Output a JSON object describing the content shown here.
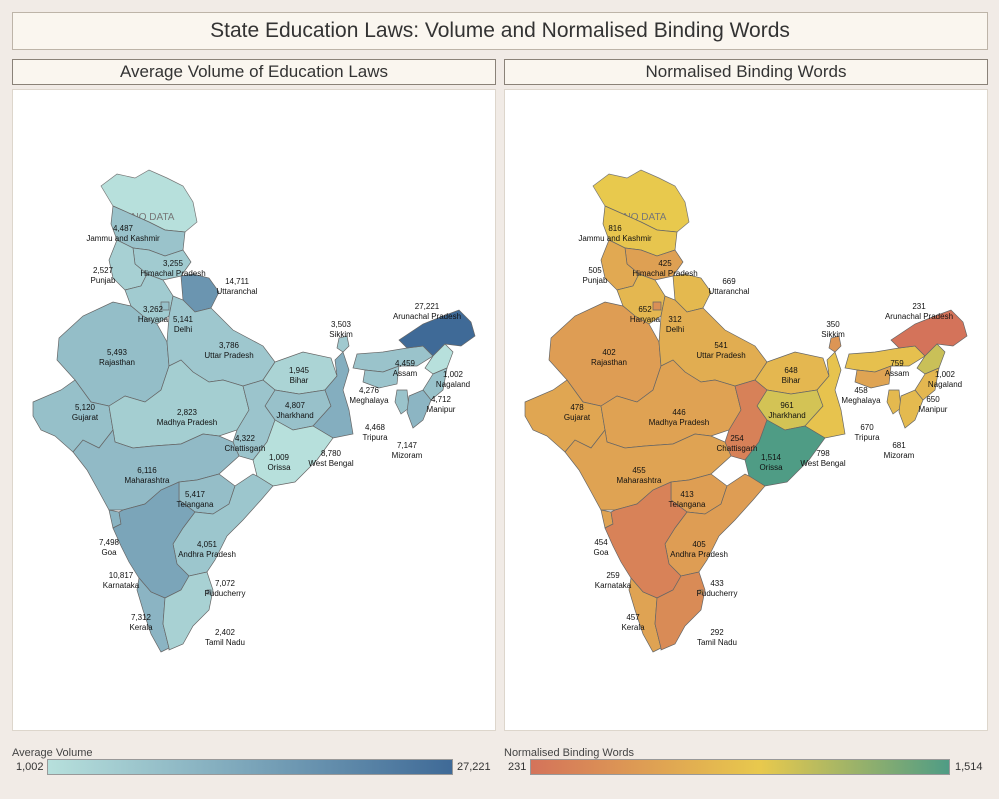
{
  "title": "State Education Laws: Volume and Normalised Binding Words",
  "no_data_label": "NO DATA",
  "left_panel": {
    "title": "Average Volume of Education Laws",
    "legend": {
      "title": "Average Volume",
      "min": "1,002",
      "max": "27,221"
    },
    "colors": {
      "low": "#b7e0dc",
      "high": "#3f6a97"
    }
  },
  "right_panel": {
    "title": "Normalised Binding Words",
    "legend": {
      "title": "Normalised Binding Words",
      "min": "231",
      "max": "1,514"
    },
    "colors": {
      "low": "#d4735a",
      "mid": "#e8c94d",
      "high": "#4f9c85"
    }
  },
  "volume_labels": [
    {
      "state": "Jammu and Kashmir",
      "value": "4,487"
    },
    {
      "state": "Himachal Pradesh",
      "value": "3,255"
    },
    {
      "state": "Punjab",
      "value": "2,527"
    },
    {
      "state": "Uttaranchal",
      "value": "14,711"
    },
    {
      "state": "Haryana",
      "value": "3,262"
    },
    {
      "state": "Delhi",
      "value": "5,141"
    },
    {
      "state": "Arunachal Pradesh",
      "value": "27,221"
    },
    {
      "state": "Sikkim",
      "value": "3,503"
    },
    {
      "state": "Rajasthan",
      "value": "5,493"
    },
    {
      "state": "Uttar Pradesh",
      "value": "3,786"
    },
    {
      "state": "Bihar",
      "value": "1,945"
    },
    {
      "state": "Assam",
      "value": "4,459"
    },
    {
      "state": "Nagaland",
      "value": "1,002"
    },
    {
      "state": "Meghalaya",
      "value": "4,276"
    },
    {
      "state": "Manipur",
      "value": "4,712"
    },
    {
      "state": "Gujarat",
      "value": "5,120"
    },
    {
      "state": "Madhya Pradesh",
      "value": "2,823"
    },
    {
      "state": "Jharkhand",
      "value": "4,807"
    },
    {
      "state": "Tripura",
      "value": "4,468"
    },
    {
      "state": "Chattisgarh",
      "value": "4,322"
    },
    {
      "state": "West Bengal",
      "value": "8,780"
    },
    {
      "state": "Mizoram",
      "value": "7,147"
    },
    {
      "state": "Orissa",
      "value": "1,009"
    },
    {
      "state": "Maharashtra",
      "value": "6,116"
    },
    {
      "state": "Telangana",
      "value": "5,417"
    },
    {
      "state": "Andhra Pradesh",
      "value": "4,051"
    },
    {
      "state": "Goa",
      "value": "7,498"
    },
    {
      "state": "Karnataka",
      "value": "10,817"
    },
    {
      "state": "Puducherry",
      "value": "7,072"
    },
    {
      "state": "Kerala",
      "value": "7,312"
    },
    {
      "state": "Tamil Nadu",
      "value": "2,402"
    }
  ],
  "binding_labels": [
    {
      "state": "Jammu and Kashmir",
      "value": "816"
    },
    {
      "state": "Himachal Pradesh",
      "value": "425"
    },
    {
      "state": "Punjab",
      "value": "505"
    },
    {
      "state": "Uttaranchal",
      "value": "669"
    },
    {
      "state": "Haryana",
      "value": "652"
    },
    {
      "state": "Delhi",
      "value": "312"
    },
    {
      "state": "Arunachal Pradesh",
      "value": "231"
    },
    {
      "state": "Sikkim",
      "value": "350"
    },
    {
      "state": "Rajasthan",
      "value": "402"
    },
    {
      "state": "Uttar Pradesh",
      "value": "541"
    },
    {
      "state": "Bihar",
      "value": "648"
    },
    {
      "state": "Assam",
      "value": "759"
    },
    {
      "state": "Nagaland",
      "value": "1,002"
    },
    {
      "state": "Meghalaya",
      "value": "458"
    },
    {
      "state": "Manipur",
      "value": "650"
    },
    {
      "state": "Gujarat",
      "value": "478"
    },
    {
      "state": "Madhya Pradesh",
      "value": "446"
    },
    {
      "state": "Jharkhand",
      "value": "961"
    },
    {
      "state": "Tripura",
      "value": "670"
    },
    {
      "state": "Chattisgarh",
      "value": "254"
    },
    {
      "state": "West Bengal",
      "value": "798"
    },
    {
      "state": "Mizoram",
      "value": "681"
    },
    {
      "state": "Orissa",
      "value": "1,514"
    },
    {
      "state": "Maharashtra",
      "value": "455"
    },
    {
      "state": "Telangana",
      "value": "413"
    },
    {
      "state": "Andhra Pradesh",
      "value": "405"
    },
    {
      "state": "Goa",
      "value": "454"
    },
    {
      "state": "Karnataka",
      "value": "259"
    },
    {
      "state": "Puducherry",
      "value": "433"
    },
    {
      "state": "Kerala",
      "value": "457"
    },
    {
      "state": "Tamil Nadu",
      "value": "292"
    }
  ]
}
